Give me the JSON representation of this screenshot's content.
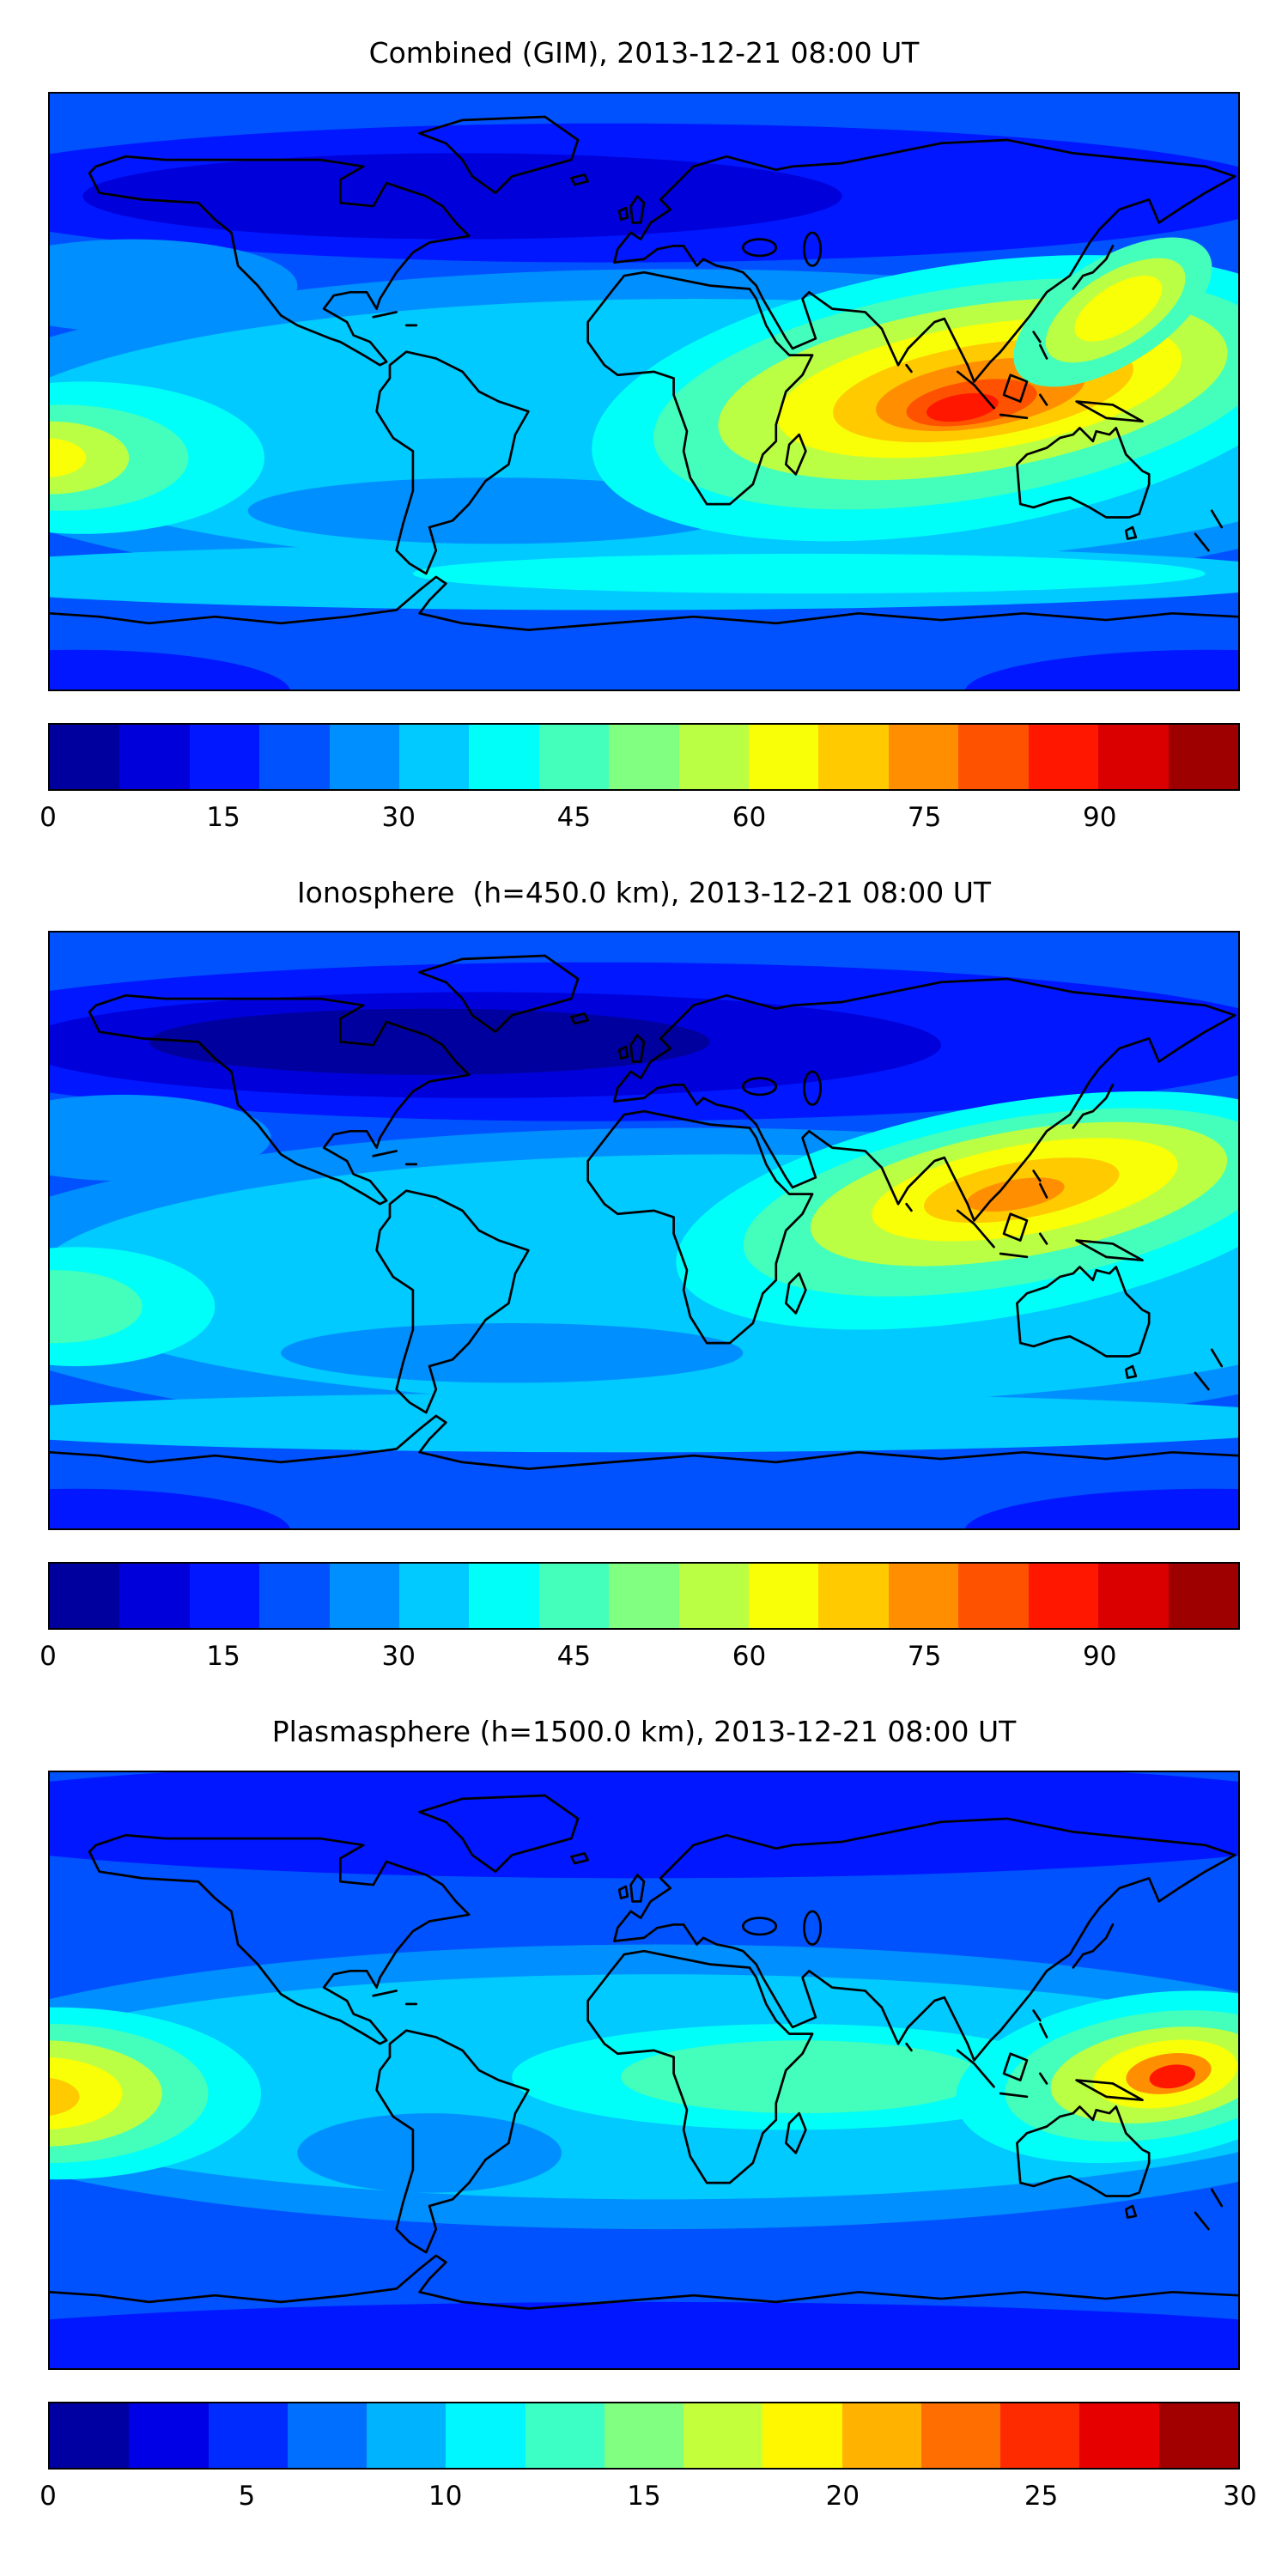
{
  "page": {
    "background": "#ffffff",
    "text_color": "#000000"
  },
  "colormap": {
    "name": "jet",
    "min_color": "#00009e",
    "max_color": "#9e0000"
  },
  "panels": [
    {
      "title": "Combined (GIM), 2013-12-21 08:00 UT",
      "colorbar": {
        "vmin": 0,
        "vmax": 102,
        "tick_values": [
          0,
          15,
          30,
          45,
          60,
          75,
          90
        ],
        "tick_labels": [
          "0",
          "15",
          "30",
          "45",
          "60",
          "75",
          "90"
        ],
        "segments": [
          "#00009e",
          "#0000da",
          "#0017ff",
          "#0052ff",
          "#008fff",
          "#00caff",
          "#00fff8",
          "#44ffbb",
          "#80ff80",
          "#bbff44",
          "#f8ff07",
          "#ffca00",
          "#ff8f00",
          "#ff5200",
          "#ff1700",
          "#da0000",
          "#9e0000"
        ]
      }
    },
    {
      "title": "Ionosphere  (h=450.0 km), 2013-12-21 08:00 UT",
      "colorbar": {
        "vmin": 0,
        "vmax": 102,
        "tick_values": [
          0,
          15,
          30,
          45,
          60,
          75,
          90
        ],
        "tick_labels": [
          "0",
          "15",
          "30",
          "45",
          "60",
          "75",
          "90"
        ],
        "segments": [
          "#00009e",
          "#0000da",
          "#0017ff",
          "#0052ff",
          "#008fff",
          "#00caff",
          "#00fff8",
          "#44ffbb",
          "#80ff80",
          "#bbff44",
          "#f8ff07",
          "#ffca00",
          "#ff8f00",
          "#ff5200",
          "#ff1700",
          "#da0000",
          "#9e0000"
        ]
      }
    },
    {
      "title": "Plasmasphere (h=1500.0 km), 2013-12-21 08:00 UT",
      "colorbar": {
        "vmin": 0,
        "vmax": 30,
        "tick_values": [
          0,
          5,
          10,
          15,
          20,
          25,
          30
        ],
        "tick_labels": [
          "0",
          "5",
          "10",
          "15",
          "20",
          "25",
          "30"
        ],
        "segments": [
          "#0000a2",
          "#0000e6",
          "#002bff",
          "#006eff",
          "#00b3ff",
          "#00f7ff",
          "#3bffc4",
          "#80ff80",
          "#c4ff3b",
          "#fff700",
          "#ffb300",
          "#ff6e00",
          "#ff2b00",
          "#e60000",
          "#a20000"
        ]
      }
    }
  ],
  "chart_data": [
    {
      "type": "heatmap",
      "title": "Combined (GIM), 2013-12-21 08:00 UT",
      "colormap": "jet",
      "value_range": [
        0,
        102
      ],
      "colorbar_ticks": [
        0,
        15,
        30,
        45,
        60,
        75,
        90
      ],
      "legend_position": "horizontal colorbar below map",
      "grid": false,
      "lon": [
        -160,
        -120,
        -80,
        -40,
        0,
        40,
        80,
        120,
        160
      ],
      "lat": [
        60,
        30,
        0,
        -30,
        -60
      ],
      "values_grid": [
        [
          12,
          8,
          6,
          6,
          8,
          10,
          14,
          16,
          14
        ],
        [
          22,
          14,
          10,
          12,
          18,
          30,
          45,
          40,
          30
        ],
        [
          45,
          30,
          25,
          30,
          40,
          60,
          95,
          70,
          50
        ],
        [
          38,
          30,
          25,
          28,
          32,
          40,
          45,
          42,
          40
        ],
        [
          30,
          28,
          26,
          25,
          26,
          28,
          30,
          30,
          30
        ]
      ],
      "peak": "≈95 near lon 95E, lat 0 (southern India / Bay of Bengal / SE Asia)"
    },
    {
      "type": "heatmap",
      "title": "Ionosphere  (h=450.0 km), 2013-12-21 08:00 UT",
      "colormap": "jet",
      "value_range": [
        0,
        102
      ],
      "colorbar_ticks": [
        0,
        15,
        30,
        45,
        60,
        75,
        90
      ],
      "legend_position": "horizontal colorbar below map",
      "grid": false,
      "lon": [
        -160,
        -120,
        -80,
        -40,
        0,
        40,
        80,
        120,
        160
      ],
      "lat": [
        60,
        30,
        0,
        -30,
        -60
      ],
      "values_grid": [
        [
          10,
          6,
          5,
          5,
          7,
          9,
          12,
          14,
          12
        ],
        [
          18,
          10,
          8,
          10,
          14,
          24,
          38,
          36,
          26
        ],
        [
          35,
          24,
          20,
          24,
          32,
          48,
          75,
          60,
          42
        ],
        [
          30,
          24,
          20,
          22,
          26,
          32,
          38,
          36,
          33
        ],
        [
          25,
          22,
          20,
          20,
          21,
          23,
          25,
          25,
          25
        ]
      ],
      "peak": "≈75 near lon 100E, lat 8 (SE Asia / Indonesia)"
    },
    {
      "type": "heatmap",
      "title": "Plasmasphere (h=1500.0 km), 2013-12-21 08:00 UT",
      "colormap": "jet",
      "value_range": [
        0,
        30
      ],
      "colorbar_ticks": [
        0,
        5,
        10,
        15,
        20,
        25,
        30
      ],
      "legend_position": "horizontal colorbar below map",
      "grid": false,
      "lon": [
        -160,
        -120,
        -80,
        -40,
        0,
        40,
        80,
        120,
        160
      ],
      "lat": [
        60,
        30,
        0,
        -30,
        -60
      ],
      "values_grid": [
        [
          5,
          4,
          4,
          4,
          5,
          5,
          6,
          6,
          6
        ],
        [
          10,
          7,
          6,
          6,
          7,
          9,
          11,
          12,
          11
        ],
        [
          22,
          14,
          10,
          10,
          12,
          14,
          15,
          26,
          24
        ],
        [
          12,
          10,
          8,
          8,
          9,
          10,
          11,
          12,
          12
        ],
        [
          6,
          5,
          5,
          5,
          5,
          6,
          6,
          6,
          6
        ]
      ],
      "peak": "≈28 near lon 150E, lat 0 and ≈22 at map left edge (lon 180W), lat -5"
    }
  ]
}
